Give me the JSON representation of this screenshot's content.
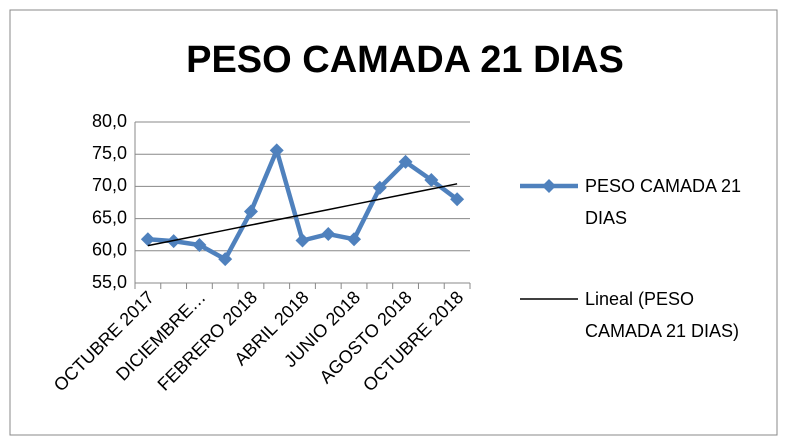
{
  "chart_data": {
    "type": "line",
    "title": "PESO CAMADA 21 DIAS",
    "categories": [
      "OCTUBRE 2017",
      null,
      "DICIEMBRE…",
      null,
      "FEBRERO 2018",
      null,
      "ABRIL 2018",
      null,
      "JUNIO 2018",
      null,
      "AGOSTO 2018",
      null,
      "OCTUBRE 2018"
    ],
    "series": [
      {
        "name": "PESO CAMADA 21 DIAS",
        "color": "#4f81bd",
        "values": [
          61.8,
          61.5,
          60.9,
          58.7,
          66.1,
          75.6,
          61.6,
          62.6,
          61.8,
          69.8,
          73.8,
          71.0,
          68.0
        ]
      },
      {
        "name": "Lineal (PESO CAMADA 21 DIAS)",
        "color": "#000000",
        "values": [
          60.8,
          61.6,
          62.4,
          63.2,
          64.0,
          64.8,
          65.6,
          66.4,
          67.2,
          68.0,
          68.8,
          69.6,
          70.4
        ]
      }
    ],
    "ylim": [
      55,
      80
    ],
    "yticks": [
      {
        "value": 55,
        "label": "55,0"
      },
      {
        "value": 60,
        "label": "60,0"
      },
      {
        "value": 65,
        "label": "65,0"
      },
      {
        "value": 70,
        "label": "70,0"
      },
      {
        "value": 75,
        "label": "75,0"
      },
      {
        "value": 80,
        "label": "80,0"
      }
    ],
    "grid": true,
    "legend": "right"
  }
}
